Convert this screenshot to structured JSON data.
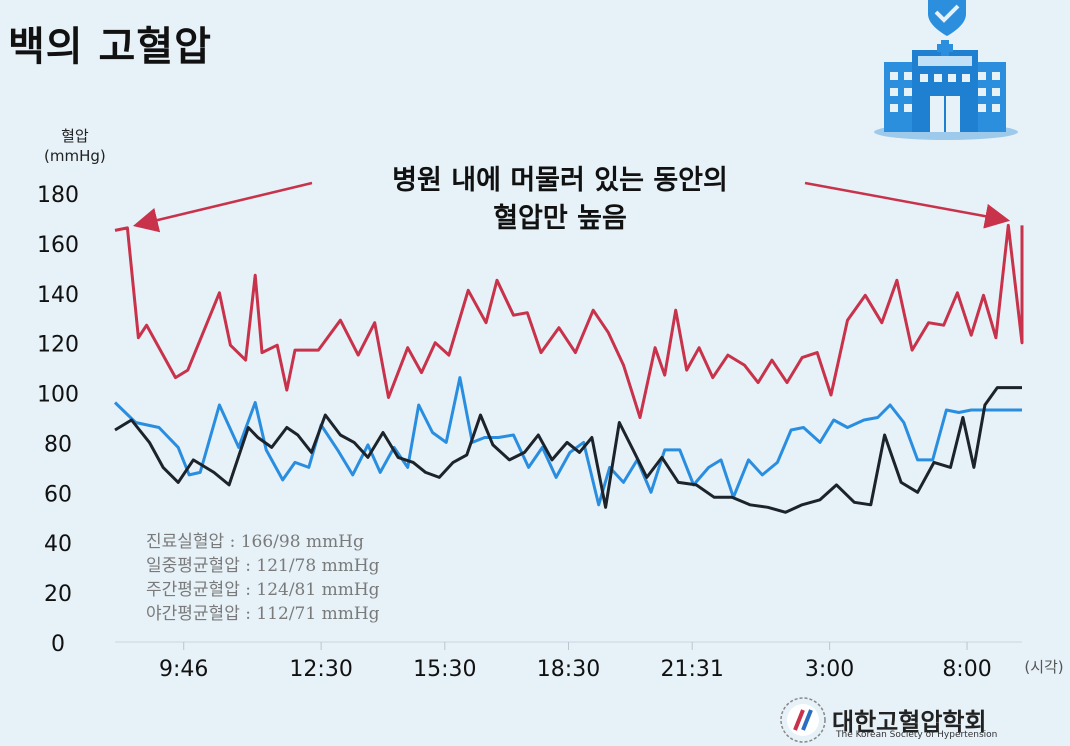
{
  "title": "백의 고혈압",
  "y_unit": [
    "혈압",
    "(mmHg)"
  ],
  "annotation": [
    "병원 내에 머물러 있는 동안의",
    "혈압만 높음"
  ],
  "notes": [
    "진료실혈압 : 166/98 mmHg",
    "일중평균혈압 : 121/78 mmHg",
    "주간평균혈압 : 124/81 mmHg",
    "야간평균혈압 : 112/71 mmHg"
  ],
  "logo": {
    "name": "대한고혈압학회",
    "subtitle": "The Korean Society of Hypertension"
  },
  "icons": [
    "hospital-icon",
    "heart-shield-icon",
    "society-logo-icon"
  ],
  "colors": {
    "systolic": "#c8324a",
    "diastolic_day": "#2a8ee0",
    "diastolic_night": "#1c232b",
    "arrow": "#c8324a"
  },
  "chart_data": {
    "type": "line",
    "title": "",
    "xlabel": "(시각)",
    "ylabel": "혈압 (mmHg)",
    "ylim": [
      0,
      180
    ],
    "yticks": [
      0,
      20,
      40,
      60,
      80,
      100,
      120,
      140,
      160,
      180
    ],
    "xtick_labels": [
      "9:46",
      "12:30",
      "15:30",
      "18:30",
      "21:31",
      "3:00",
      "8:00"
    ],
    "x_range": [
      0,
      66
    ],
    "xtick_positions": [
      5,
      15,
      24,
      33,
      42,
      52,
      62
    ],
    "series": [
      {
        "name": "",
        "color": "#c8324a",
        "x": [
          0,
          1,
          2,
          3,
          4,
          5,
          6,
          7,
          8,
          9,
          10,
          11,
          12,
          13,
          14,
          15,
          16,
          17,
          18,
          19,
          20,
          21,
          22,
          23,
          24,
          25,
          26,
          27,
          28,
          29,
          30,
          31,
          32,
          33,
          34,
          35,
          36,
          37,
          38,
          39,
          40,
          41,
          42,
          43,
          44,
          45,
          46,
          47,
          48,
          49,
          50,
          51,
          52,
          53,
          54,
          55,
          56,
          57,
          58,
          59,
          60,
          61,
          62,
          63,
          64,
          65,
          66
        ],
        "y": [
          165,
          166,
          122,
          127,
          106,
          109,
          140,
          119,
          113,
          147,
          116,
          119,
          101,
          117,
          117,
          129,
          115,
          128,
          98,
          118,
          108,
          120,
          115,
          141,
          128,
          145,
          131,
          132,
          116,
          126,
          116,
          133,
          124,
          111,
          90,
          118,
          107,
          133,
          109,
          118,
          106,
          115,
          111,
          104,
          113,
          104,
          114,
          116,
          99,
          129,
          139,
          128,
          145,
          117,
          128,
          127,
          140,
          123,
          139,
          122,
          167,
          139,
          120,
          122,
          130,
          140,
          167
        ],
        "xs": [
          0,
          0.9,
          1.7,
          2.3,
          4.4,
          5.3,
          7.6,
          8.4,
          9.5,
          10.2,
          10.7,
          11.8,
          12.5,
          13.1,
          14.8,
          16.4,
          17.7,
          18.9,
          19.9,
          21.3,
          22.3,
          23.3,
          24.3,
          25.7,
          27.0,
          27.8,
          29.0,
          30.0,
          31.0,
          32.3,
          33.5,
          34.8,
          35.9,
          37.0,
          38.2,
          39.3,
          40.0,
          40.8,
          41.6,
          42.5,
          43.5,
          44.6,
          45.8,
          46.8,
          47.8,
          48.9,
          50.0,
          51.1,
          52.1,
          53.3,
          54.6,
          55.8,
          56.9,
          58.0,
          59.2,
          60.3,
          61.3,
          62.3,
          63.2,
          64.1,
          65.0,
          65.6,
          66,
          66,
          66,
          66,
          66
        ]
      },
      {
        "name": "",
        "color": "#2a8ee0",
        "x": [
          0,
          1.5,
          3.2,
          4.6,
          5.4,
          6.2,
          7.6,
          9.0,
          10.2,
          11.0,
          12.2,
          13.1,
          14.1,
          15.0,
          16.2,
          17.3,
          18.4,
          19.3,
          20.3,
          21.3,
          22.1,
          23.1,
          24.1,
          25.1,
          26.0,
          26.9,
          27.9,
          29.0,
          30.1,
          31.1,
          32.1,
          33.1,
          34.1,
          35.2,
          36.0,
          37.0,
          38.0,
          39.0,
          40.0,
          41.1,
          42.1,
          43.2,
          44.1,
          45.0,
          46.1,
          47.1,
          48.2,
          49.2,
          50.1,
          51.3,
          52.3,
          53.3,
          54.5,
          55.5,
          56.4,
          57.4,
          58.4,
          59.5,
          60.5,
          61.4,
          62.3,
          63.4,
          64.4,
          65.3,
          66
        ],
        "y": [
          96,
          88,
          86,
          78,
          67,
          68,
          95,
          78,
          96,
          77,
          65,
          72,
          70,
          87,
          77,
          67,
          79,
          68,
          78,
          70,
          95,
          84,
          80,
          106,
          80,
          82,
          82,
          83,
          70,
          78,
          66,
          76,
          80,
          55,
          70,
          64,
          73,
          60,
          77,
          77,
          63,
          70,
          73,
          58,
          73,
          67,
          72,
          85,
          86,
          80,
          89,
          86,
          89,
          90,
          95,
          88,
          73,
          73,
          93,
          92,
          93,
          93,
          93,
          93,
          93
        ]
      },
      {
        "name": "",
        "color": "#1c232b",
        "x": [
          0,
          1.2,
          2.5,
          3.5,
          4.6,
          5.7,
          7.2,
          8.3,
          9.7,
          10.4,
          11.4,
          12.5,
          13.3,
          14.3,
          15.3,
          16.4,
          17.4,
          18.4,
          19.5,
          20.6,
          21.7,
          22.6,
          23.6,
          24.6,
          25.6,
          26.6,
          27.5,
          28.7,
          29.8,
          30.8,
          31.8,
          32.9,
          33.8,
          34.7,
          35.7,
          36.7,
          37.7,
          38.7,
          39.8,
          41.0,
          42.3,
          43.6,
          44.9,
          46.2,
          47.5,
          48.8,
          50.0,
          51.3,
          52.5,
          53.8,
          55.0,
          56.0,
          57.2,
          58.4,
          59.6,
          60.8,
          61.7,
          62.5,
          63.3,
          64.2,
          65.0,
          65.7,
          66
        ],
        "y": [
          85,
          89,
          80,
          70,
          64,
          73,
          68,
          63,
          86,
          82,
          78,
          86,
          83,
          76,
          91,
          83,
          80,
          74,
          84,
          74,
          72,
          68,
          66,
          72,
          75,
          91,
          79,
          73,
          76,
          83,
          73,
          80,
          76,
          82,
          54,
          88,
          77,
          66,
          74,
          64,
          63,
          58,
          58,
          55,
          54,
          52,
          55,
          57,
          63,
          56,
          55,
          83,
          64,
          60,
          72,
          70,
          90,
          70,
          95,
          102,
          102,
          102,
          102
        ]
      }
    ]
  }
}
